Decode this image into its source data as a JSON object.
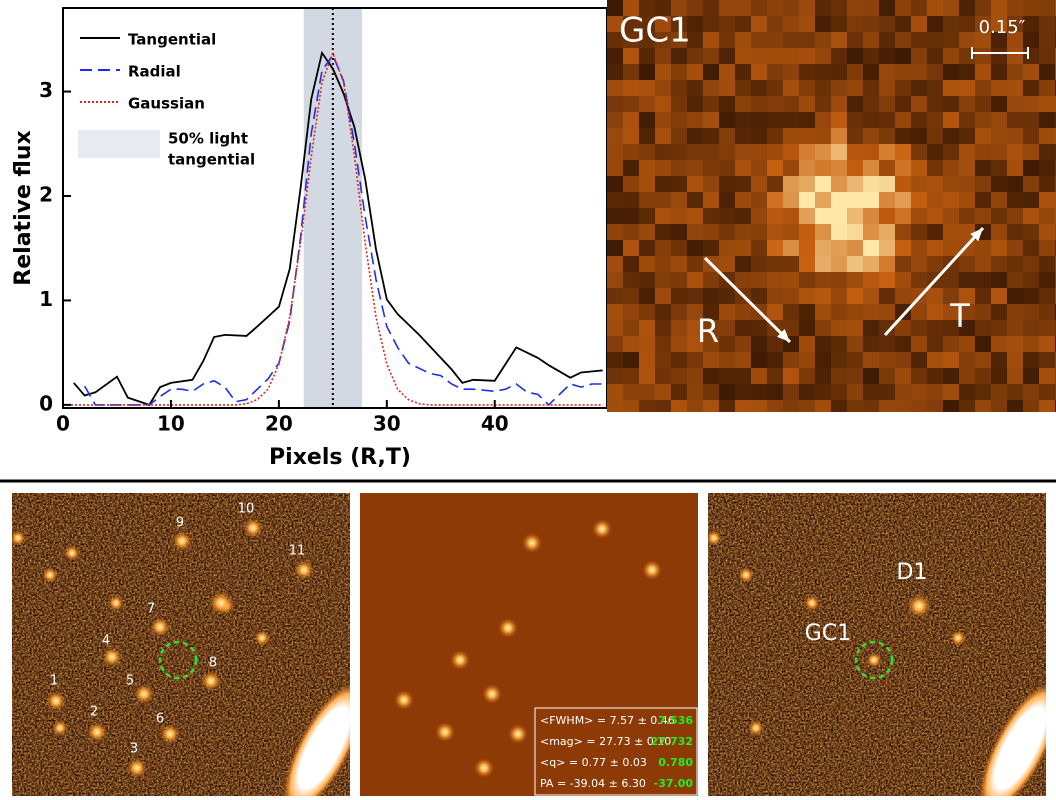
{
  "chart_data": {
    "type": "line",
    "xlabel": "Pixels (R,T)",
    "ylabel": "Relative flux",
    "xlim": [
      0,
      50.4
    ],
    "ylim": [
      -0.03,
      3.8
    ],
    "xticks": [
      0,
      10,
      20,
      30,
      40
    ],
    "yticks": [
      0,
      1,
      2,
      3
    ],
    "band": [
      22.3,
      27.7
    ],
    "band_color": "#d3d9e2",
    "band_label": [
      "50% light",
      "tangential"
    ],
    "vline": 25,
    "series": [
      {
        "name": "Tangential",
        "color": "#000000",
        "style": "solid",
        "x": [
          1,
          2,
          3,
          5,
          6,
          8,
          9,
          10,
          12,
          13,
          14,
          15,
          17,
          18,
          20,
          21,
          22,
          23,
          24,
          25,
          26,
          27,
          28,
          29,
          30,
          31,
          33,
          35,
          36,
          37,
          38,
          40,
          42,
          44,
          45,
          47,
          48,
          50
        ],
        "values": [
          0.21,
          0.09,
          0.12,
          0.27,
          0.07,
          0,
          0.17,
          0.21,
          0.24,
          0.42,
          0.65,
          0.67,
          0.66,
          0.75,
          0.94,
          1.3,
          2.07,
          2.93,
          3.37,
          3.22,
          2.98,
          2.66,
          2.16,
          1.49,
          1.01,
          0.87,
          0.67,
          0.45,
          0.34,
          0.21,
          0.24,
          0.23,
          0.55,
          0.45,
          0.38,
          0.26,
          0.31,
          0.33
        ]
      },
      {
        "name": "Radial",
        "color": "#1f2fe8",
        "style": "dashed",
        "x": [
          2,
          3,
          4,
          5,
          6,
          7,
          8,
          9,
          10,
          11,
          12,
          13,
          14,
          15,
          16,
          17,
          18,
          19,
          20,
          21,
          22,
          23,
          24,
          25,
          26,
          27,
          28,
          29,
          30,
          31,
          32,
          33,
          34,
          35,
          36,
          37,
          38,
          39,
          40,
          41,
          42,
          43,
          44,
          45,
          46,
          47,
          48,
          49,
          50
        ],
        "values": [
          0.18,
          0,
          0,
          0,
          0,
          0,
          0,
          0.08,
          0.15,
          0.15,
          0.13,
          0.2,
          0.23,
          0.17,
          0.03,
          0.05,
          0.15,
          0.25,
          0.4,
          0.8,
          1.6,
          2.6,
          3.2,
          3.35,
          3.1,
          2.5,
          1.8,
          1.2,
          0.75,
          0.55,
          0.4,
          0.35,
          0.3,
          0.28,
          0.2,
          0.15,
          0.15,
          0.14,
          0.13,
          0.15,
          0.2,
          0.12,
          0.1,
          0,
          0.1,
          0.2,
          0.17,
          0.2,
          0.2
        ]
      },
      {
        "name": "Gaussian",
        "color": "#e0281e",
        "style": "dotted",
        "x": [
          0,
          15,
          16,
          17,
          18,
          19,
          20,
          21,
          22,
          23,
          24,
          25,
          26,
          27,
          28,
          29,
          30,
          31,
          32,
          33,
          34,
          35,
          50
        ],
        "values": [
          0,
          0,
          0,
          0.01,
          0.05,
          0.15,
          0.39,
          0.84,
          1.55,
          2.38,
          3.09,
          3.37,
          3.09,
          2.38,
          1.55,
          0.84,
          0.39,
          0.15,
          0.05,
          0.01,
          0,
          0,
          0
        ]
      }
    ]
  },
  "cutout": {
    "label": "GC1",
    "scale": "0.15″",
    "arrows": [
      "R",
      "T"
    ]
  },
  "panels": {
    "sources": [
      "1",
      "2",
      "3",
      "4",
      "5",
      "6",
      "7",
      "8",
      "9",
      "10",
      "11"
    ],
    "model_stats": [
      [
        "<FWHM> = 7.57 ± 0.46",
        "7.536"
      ],
      [
        "<mag> = 27.73 ± 0.10",
        "27.732"
      ],
      [
        "<q> = 0.77 ± 0.03",
        "0.780"
      ],
      [
        "PA = -39.04 ± 6.30",
        "-37.00"
      ]
    ],
    "residual_labels": [
      "GC1",
      "D1"
    ]
  }
}
